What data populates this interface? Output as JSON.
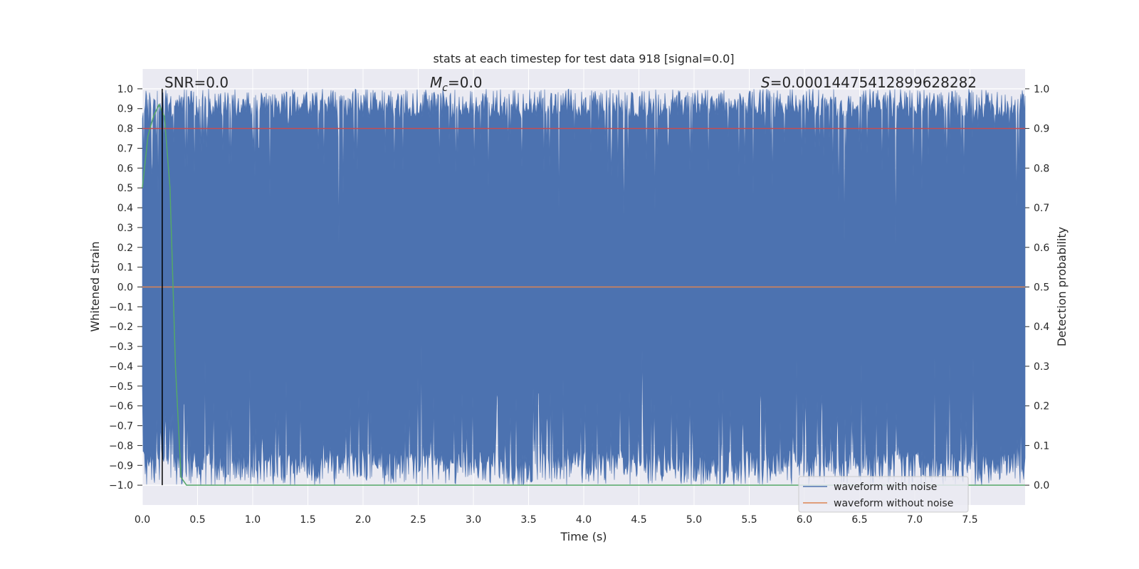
{
  "chart_data": {
    "type": "line",
    "title": "stats at each timestep for test data 918 [signal=0.0]",
    "xlabel": "Time (s)",
    "ylabel": "Whitened strain",
    "y2label": "Detection probability",
    "xlim": [
      0.0,
      8.0
    ],
    "ylim": [
      -1.1,
      1.1
    ],
    "y2lim": [
      -0.05,
      1.05
    ],
    "x_ticks": [
      "0.0",
      "0.5",
      "1.0",
      "1.5",
      "2.0",
      "2.5",
      "3.0",
      "3.5",
      "4.0",
      "4.5",
      "5.0",
      "5.5",
      "6.0",
      "6.5",
      "7.0",
      "7.5"
    ],
    "y_ticks": [
      "1.0",
      "0.9",
      "0.8",
      "0.7",
      "0.6",
      "0.5",
      "0.4",
      "0.3",
      "0.2",
      "0.1",
      "0.0",
      "−0.1",
      "−0.2",
      "−0.3",
      "−0.4",
      "−0.5",
      "−0.6",
      "−0.7",
      "−0.8",
      "−0.9",
      "−1.0"
    ],
    "y2_ticks": [
      "1.0",
      "0.9",
      "0.8",
      "0.7",
      "0.6",
      "0.5",
      "0.4",
      "0.3",
      "0.2",
      "0.1",
      "0.0"
    ],
    "grid": true,
    "legend_position": "lower-right",
    "annotations": {
      "snr": "SNR=0.0",
      "mc_symbol": "M",
      "mc_sub": "c",
      "mc_value": "=0.0",
      "s_symbol": "S",
      "s_value": "=0.00014475412899628282"
    },
    "series": [
      {
        "name": "waveform with noise",
        "color": "#4c72b0",
        "axis": "left",
        "description_range": [
          -1.0,
          1.0
        ],
        "x_range": [
          0.0,
          8.0
        ]
      },
      {
        "name": "waveform without noise",
        "color": "#dd8452",
        "axis": "left",
        "x": [
          0.0,
          8.0
        ],
        "y": [
          0.0,
          0.0
        ]
      },
      {
        "name": "",
        "color": "#55a868",
        "axis": "right",
        "x": [
          0.0,
          0.05,
          0.1,
          0.15,
          0.2,
          0.25,
          0.3,
          0.35,
          0.4,
          8.0
        ],
        "y": [
          0.75,
          0.88,
          0.93,
          0.96,
          0.93,
          0.75,
          0.3,
          0.02,
          0.0,
          0.0
        ]
      },
      {
        "name": "",
        "color": "#c44e52",
        "axis": "right",
        "x": [
          0.0,
          8.0
        ],
        "y": [
          0.9,
          0.9
        ]
      }
    ],
    "marker_line": {
      "x": 0.18,
      "color": "#000000"
    }
  }
}
